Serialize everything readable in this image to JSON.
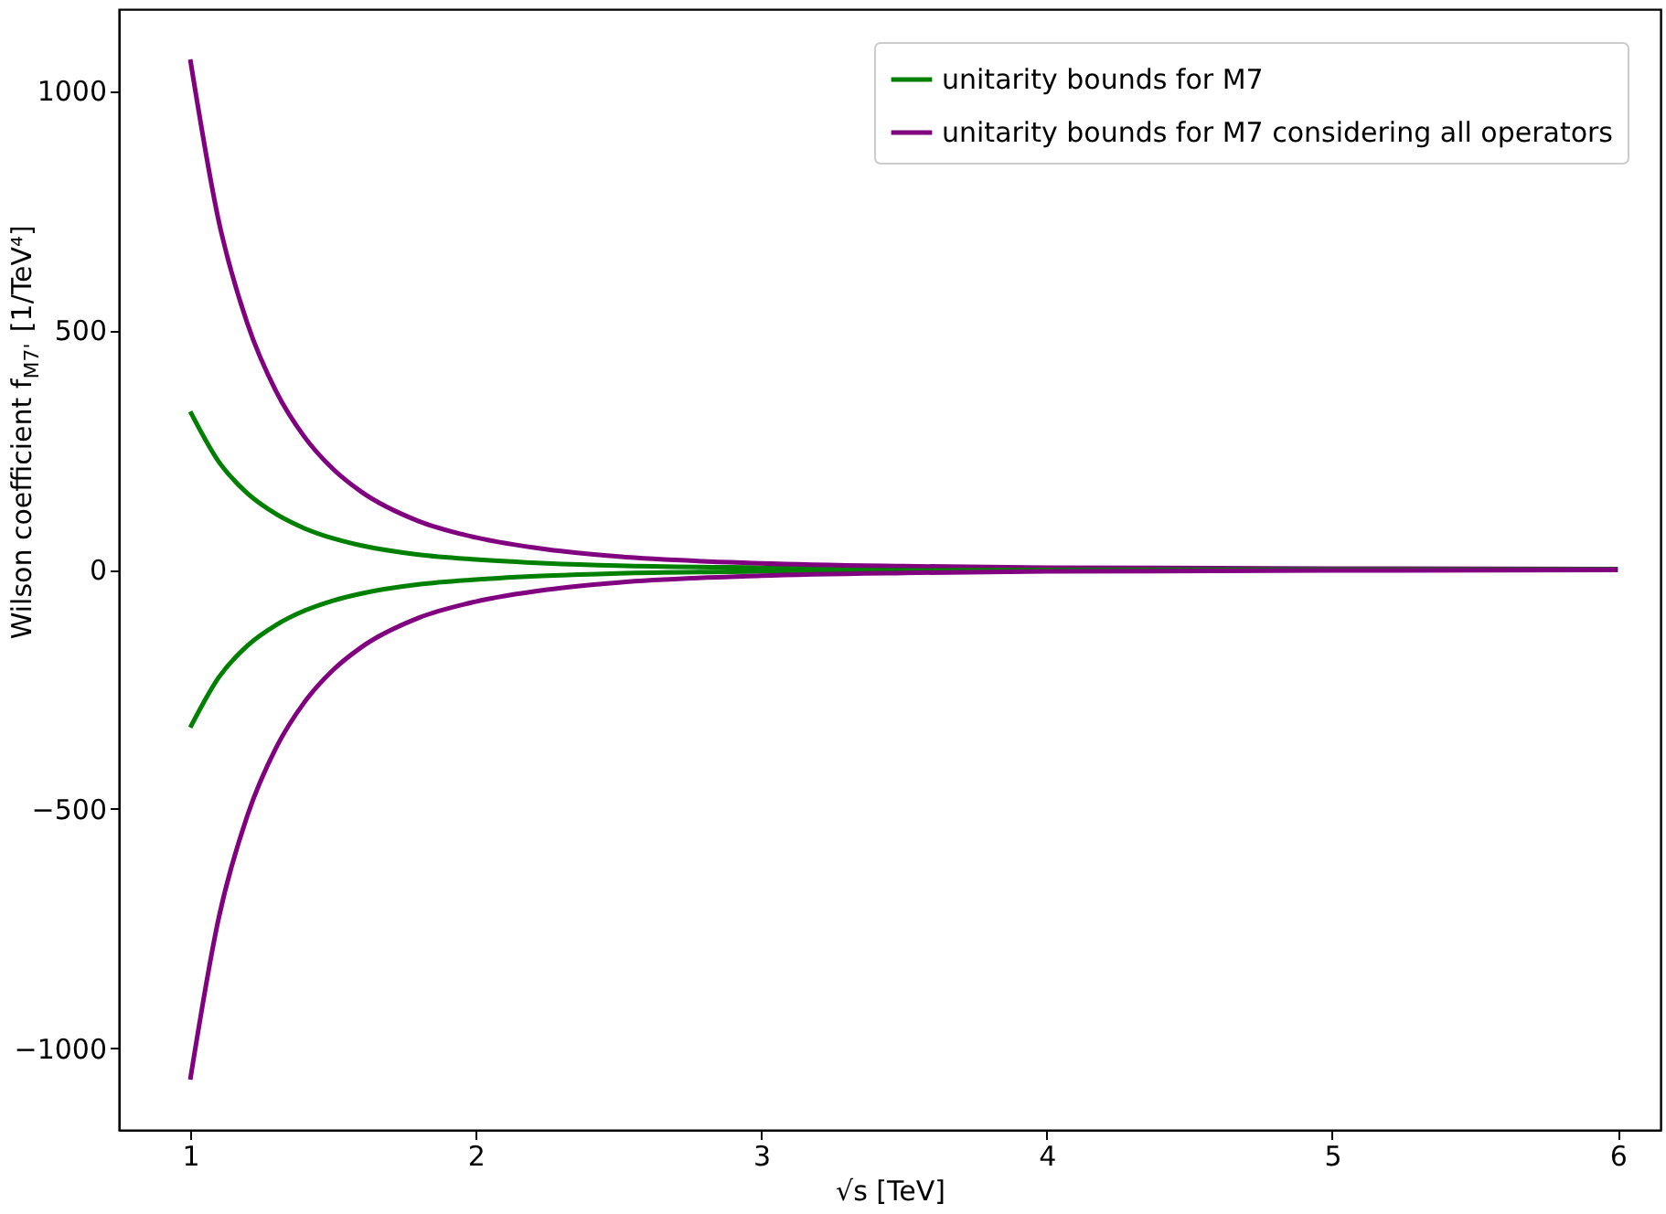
{
  "chart_data": {
    "type": "line",
    "xlabel": "√s [TeV]",
    "ylabel": "Wilson coefficient f$_{M7'}$ [1/TeV⁴]",
    "x": [
      1,
      1.1,
      1.2,
      1.3,
      1.4,
      1.5,
      1.6,
      1.8,
      2,
      2.25,
      2.5,
      3,
      3.5,
      4,
      5,
      6
    ],
    "series": [
      {
        "name": "unitarity bounds for M7",
        "color": "#008000",
        "values": [
          330,
          225,
          159,
          116,
          86,
          65,
          50,
          31,
          21,
          13,
          8,
          4,
          2,
          1,
          0,
          0
        ]
      },
      {
        "name": "unitarity bounds for M7 considering all operators",
        "color": "#800080",
        "values": [
          1065,
          727,
          514,
          373,
          277,
          210,
          162,
          101,
          67,
          42,
          27,
          13,
          7,
          4,
          2,
          1
        ]
      },
      {
        "color": "#008000",
        "values": [
          -330,
          -225,
          -159,
          -116,
          -86,
          -65,
          -50,
          -31,
          -21,
          -13,
          -8,
          -4,
          -2,
          -1,
          0,
          0
        ]
      },
      {
        "color": "#800080",
        "values": [
          -1065,
          -727,
          -514,
          -373,
          -277,
          -210,
          -162,
          -101,
          -67,
          -42,
          -27,
          -13,
          -7,
          -4,
          -2,
          -1
        ]
      }
    ],
    "xlim": [
      0.75,
      6.15
    ],
    "xticks": [
      1,
      2,
      3,
      4,
      5,
      6
    ],
    "ylim": [
      -1170,
      1170
    ],
    "yticks": [
      -1000,
      -500,
      0,
      500,
      1000
    ],
    "grid": false,
    "legend": "top right",
    "marker": "none",
    "line_style": "solid"
  }
}
